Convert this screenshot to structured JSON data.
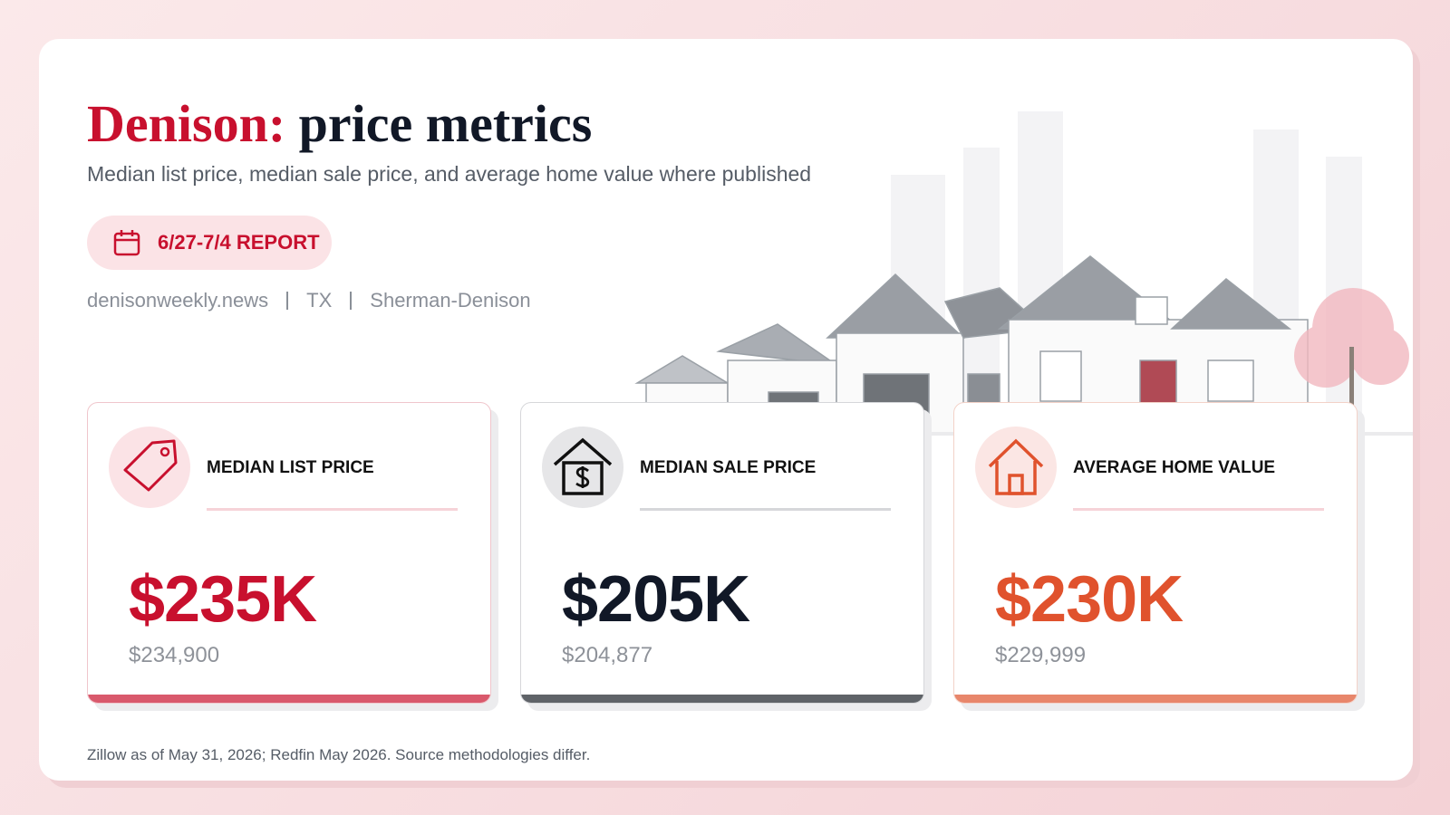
{
  "header": {
    "title_city": "Denison:",
    "title_rest": "price metrics",
    "subtitle": "Median list price, median sale price, and average home value where published",
    "badge": "6/27-7/4 REPORT",
    "meta": [
      "denisonweekly.news",
      "TX",
      "Sherman-Denison"
    ]
  },
  "cards": [
    {
      "label": "MEDIAN LIST PRICE",
      "value": "$235K",
      "exact": "$234,900"
    },
    {
      "label": "MEDIAN SALE PRICE",
      "value": "$205K",
      "exact": "$204,877"
    },
    {
      "label": "AVERAGE HOME VALUE",
      "value": "$230K",
      "exact": "$229,999"
    }
  ],
  "footer": {
    "note": "Zillow as of May 31, 2026; Redfin May 2026. Source methodologies differ."
  }
}
